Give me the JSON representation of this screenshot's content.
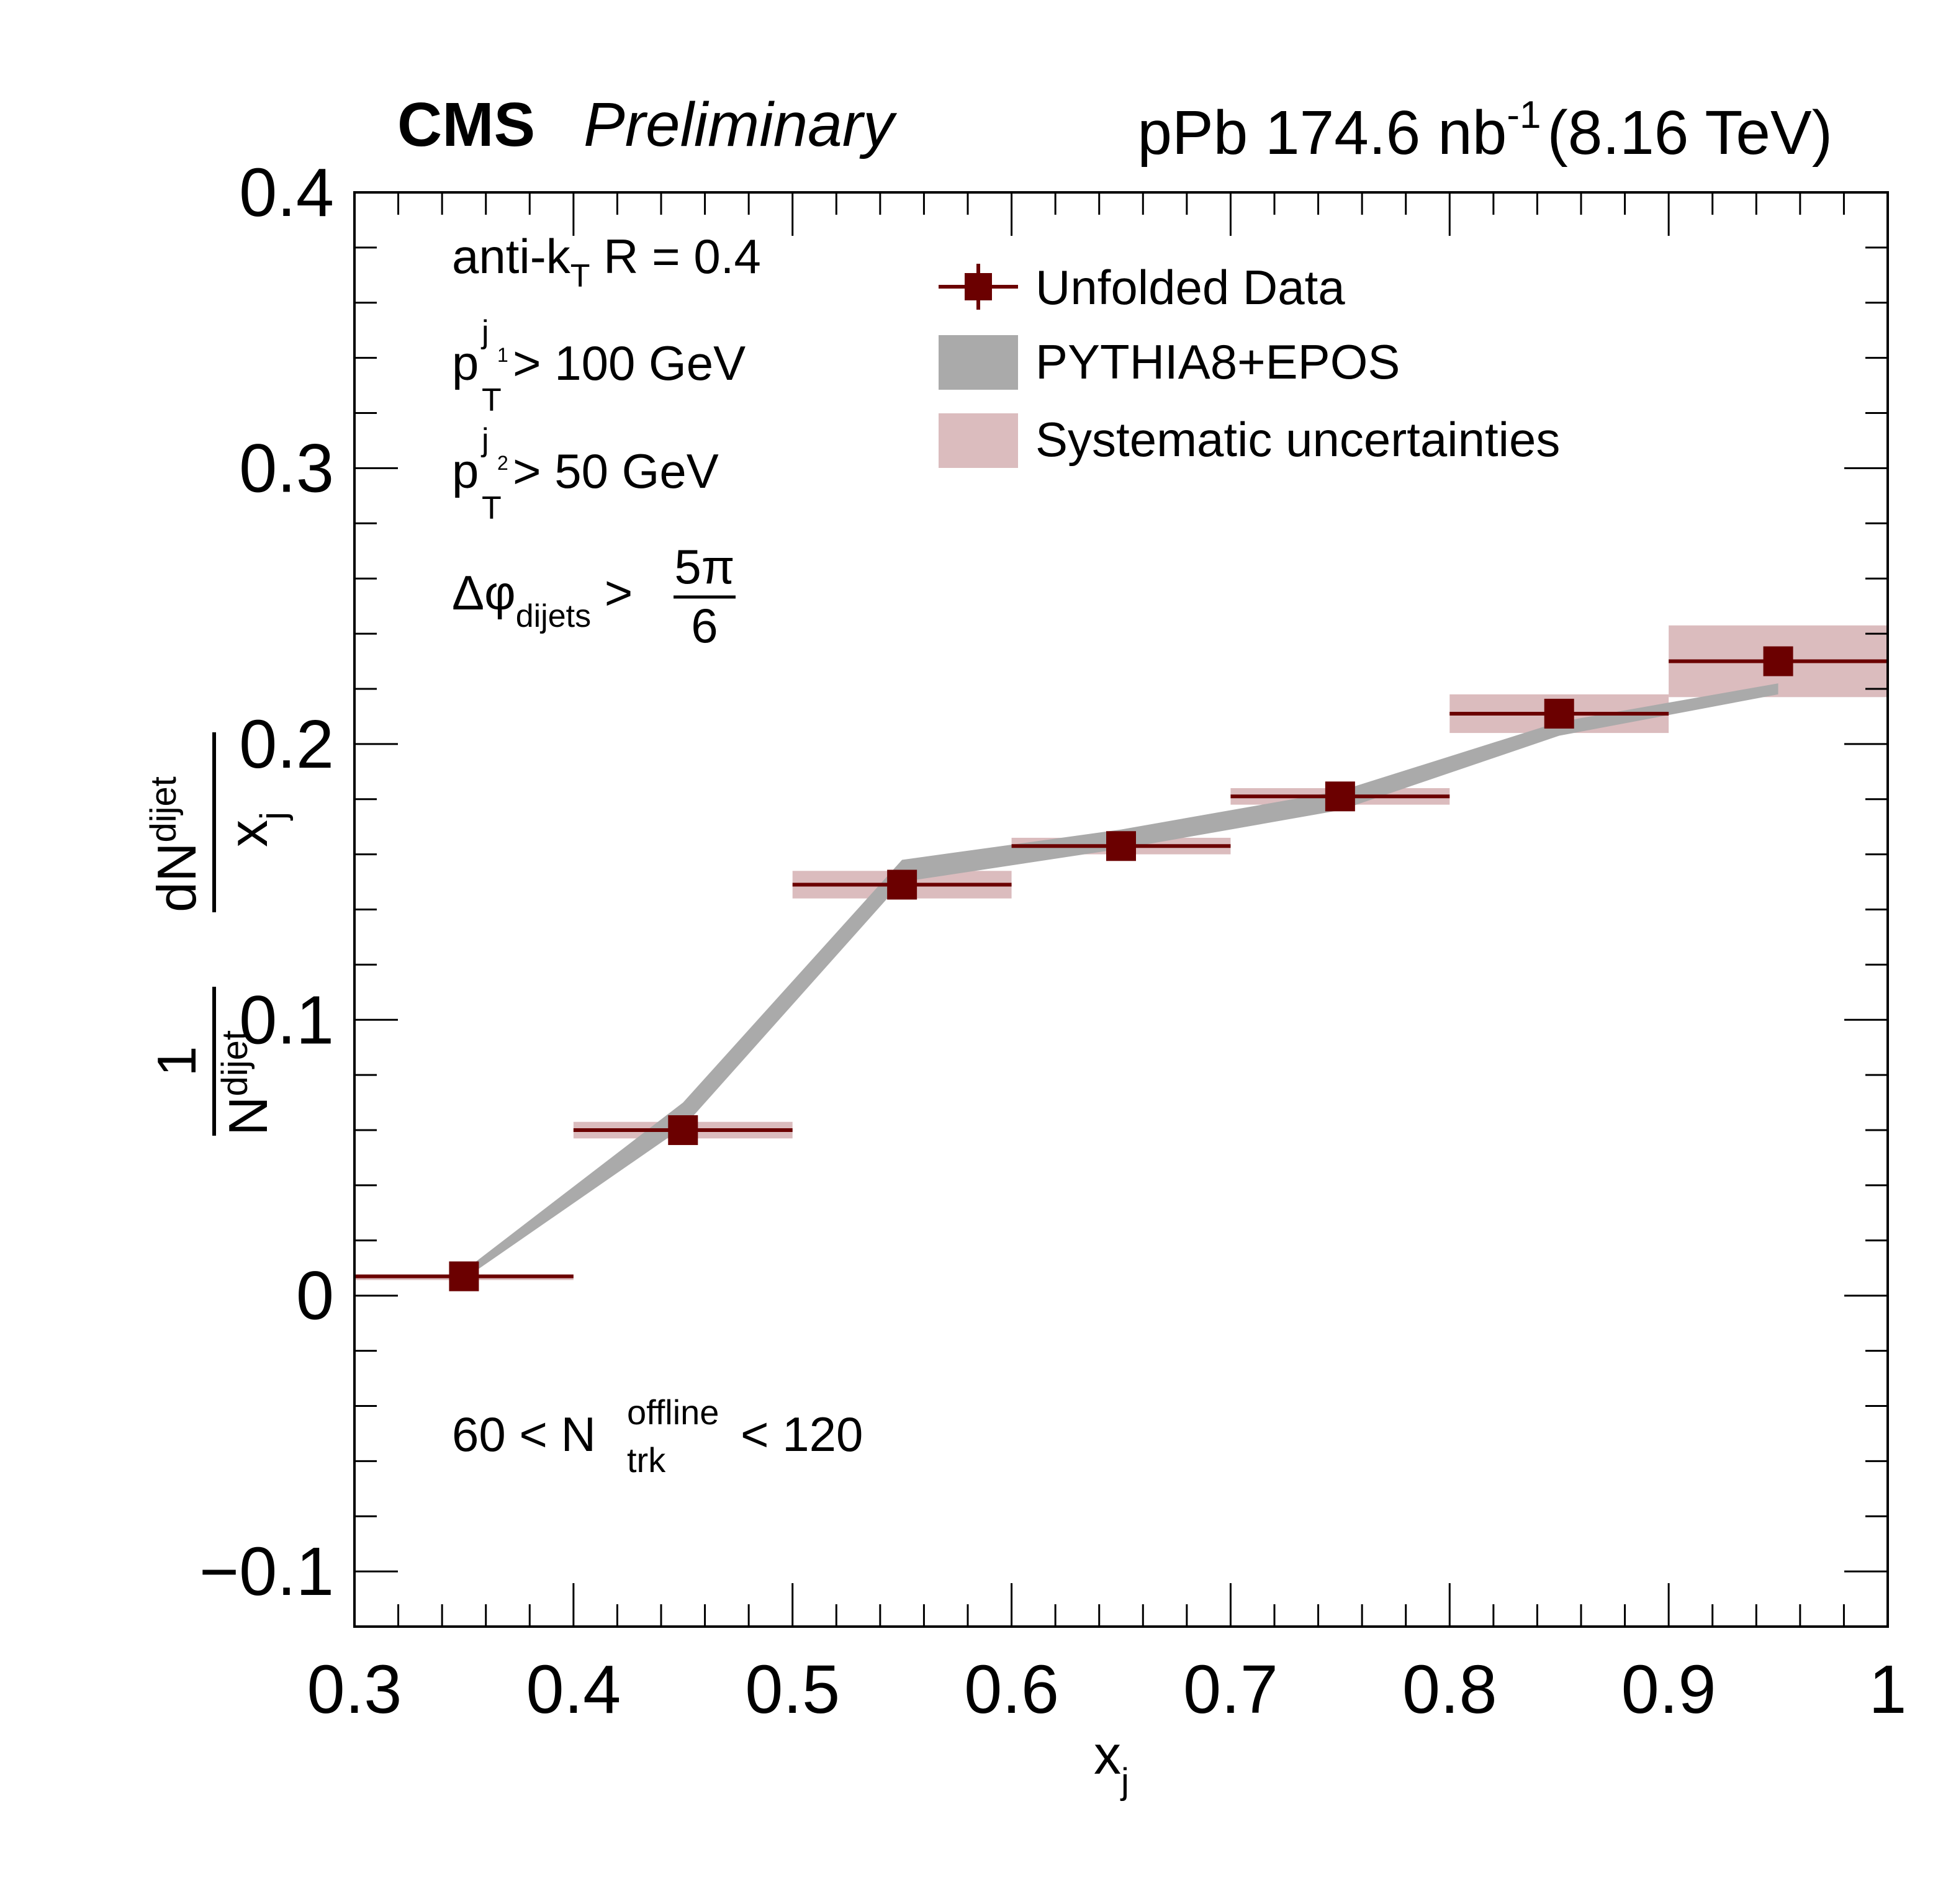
{
  "header": {
    "cms": "CMS",
    "preliminary": "Preliminary",
    "lumi_prefix": "pPb 174.6 nb",
    "lumi_sup": "-1",
    "energy": "(8.16 TeV)"
  },
  "annotations": {
    "algo_main": "anti-k",
    "algo_sub": "T",
    "algo_rest": " R = 0.4",
    "pt1_p": "p",
    "pt1_sub": "T",
    "pt1_sup": "j",
    "pt1_supsub": "1",
    "pt1_rest": " > 100 GeV",
    "pt2_p": "p",
    "pt2_sub": "T",
    "pt2_sup": "j",
    "pt2_supsub": "2",
    "pt2_rest": " > 50 GeV",
    "dphi_main": "Δφ",
    "dphi_sub": "dijets",
    "dphi_gt": " >",
    "dphi_num": "5π",
    "dphi_den": "6",
    "ntrk_left": "60 < N",
    "ntrk_sup": "offline",
    "ntrk_sub": "trk",
    "ntrk_right": " < 120"
  },
  "axes": {
    "x_label_main": "x",
    "x_label_sub": "j",
    "y_label_one": "1",
    "y_label_n": "N",
    "y_label_n_sub": "dijet",
    "y_label_dn": "dN",
    "y_label_dn_sub": "dijet",
    "y_label_x": "x",
    "y_label_x_sub": "j"
  },
  "chart_data": {
    "type": "scatter",
    "xlim": [
      0.3,
      1.0
    ],
    "ylim": [
      -0.12,
      0.4
    ],
    "x_ticks": [
      0.3,
      0.4,
      0.5,
      0.6,
      0.7,
      0.8,
      0.9,
      1.0
    ],
    "x_tick_labels": [
      "0.3",
      "0.4",
      "0.5",
      "0.6",
      "0.7",
      "0.8",
      "0.9",
      "1"
    ],
    "y_ticks": [
      -0.1,
      0.0,
      0.1,
      0.2,
      0.3,
      0.4
    ],
    "y_tick_labels": [
      "−0.1",
      "0",
      "0.1",
      "0.2",
      "0.3",
      "0.4"
    ],
    "grid": false,
    "legend_position": "top-right",
    "legend": [
      "Unfolded Data",
      "PYTHIA8+EPOS",
      "Systematic uncertainties"
    ],
    "colors": {
      "data": "#6b0000",
      "model": "#aaaaaa",
      "systematic": "#dbbcbe"
    },
    "series": [
      {
        "name": "Unfolded Data",
        "x": [
          0.35,
          0.45,
          0.55,
          0.65,
          0.75,
          0.85,
          0.95
        ],
        "x_low": [
          0.3,
          0.4,
          0.5,
          0.6,
          0.7,
          0.8,
          0.9
        ],
        "x_high": [
          0.4,
          0.5,
          0.6,
          0.7,
          0.8,
          0.9,
          1.0
        ],
        "y": [
          0.007,
          0.06,
          0.149,
          0.163,
          0.181,
          0.211,
          0.23
        ],
        "sys_low": [
          0.007,
          0.057,
          0.144,
          0.16,
          0.178,
          0.204,
          0.217
        ],
        "sys_high": [
          0.007,
          0.063,
          0.154,
          0.166,
          0.184,
          0.218,
          0.243
        ]
      },
      {
        "name": "PYTHIA8+EPOS",
        "x": [
          0.35,
          0.45,
          0.55,
          0.65,
          0.75,
          0.85,
          0.95
        ],
        "y_low": [
          0.006,
          0.061,
          0.15,
          0.162,
          0.176,
          0.203,
          0.218
        ],
        "y_high": [
          0.009,
          0.07,
          0.158,
          0.169,
          0.183,
          0.208,
          0.222
        ]
      }
    ]
  }
}
